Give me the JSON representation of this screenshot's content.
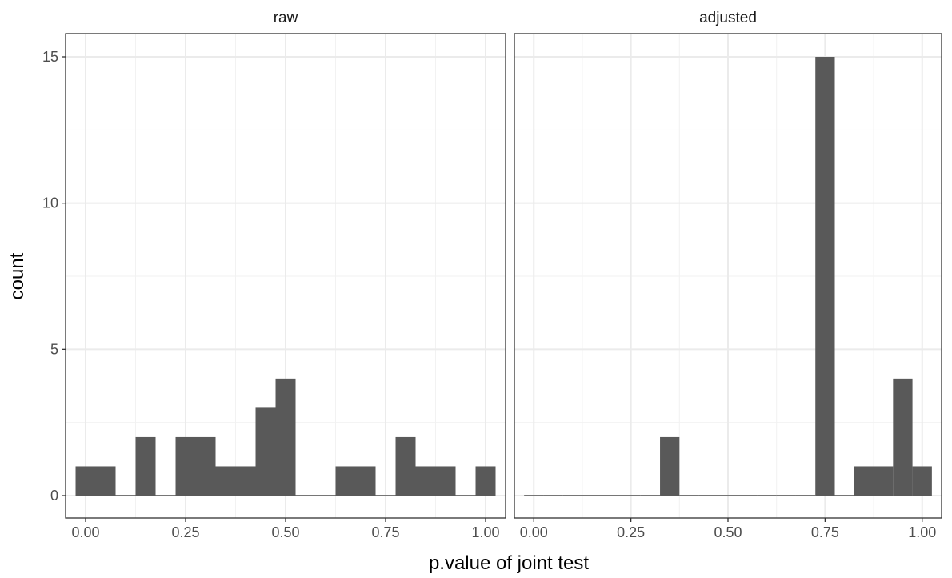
{
  "chart_data": {
    "type": "bar",
    "subtype": "faceted-histogram",
    "xlabel": "p.value of joint test",
    "ylabel": "count",
    "xlim": [
      -0.05,
      1.05
    ],
    "ylim": [
      0,
      16
    ],
    "x_ticks": [
      0.0,
      0.25,
      0.5,
      0.75,
      1.0
    ],
    "x_tick_labels": [
      "0.00",
      "0.25",
      "0.50",
      "0.75",
      "1.00"
    ],
    "y_ticks": [
      0,
      5,
      10,
      15
    ],
    "y_tick_labels": [
      "0",
      "5",
      "10",
      "15"
    ],
    "bin_width": 0.05,
    "bin_centers": [
      0.0,
      0.05,
      0.1,
      0.15,
      0.2,
      0.25,
      0.3,
      0.35,
      0.4,
      0.45,
      0.5,
      0.55,
      0.6,
      0.65,
      0.7,
      0.75,
      0.8,
      0.85,
      0.9,
      0.95,
      1.0
    ],
    "grid": true,
    "theme": "bw",
    "bar_color": "#595959",
    "facets": [
      {
        "label": "raw",
        "values": [
          1,
          1,
          0,
          2,
          0,
          2,
          2,
          1,
          1,
          3,
          4,
          0,
          0,
          1,
          1,
          0,
          2,
          1,
          1,
          0,
          1
        ]
      },
      {
        "label": "adjusted",
        "values": [
          0,
          0,
          0,
          0,
          0,
          0,
          0,
          2,
          0,
          0,
          0,
          0,
          0,
          0,
          0,
          15,
          0,
          1,
          1,
          4,
          1
        ]
      }
    ]
  }
}
